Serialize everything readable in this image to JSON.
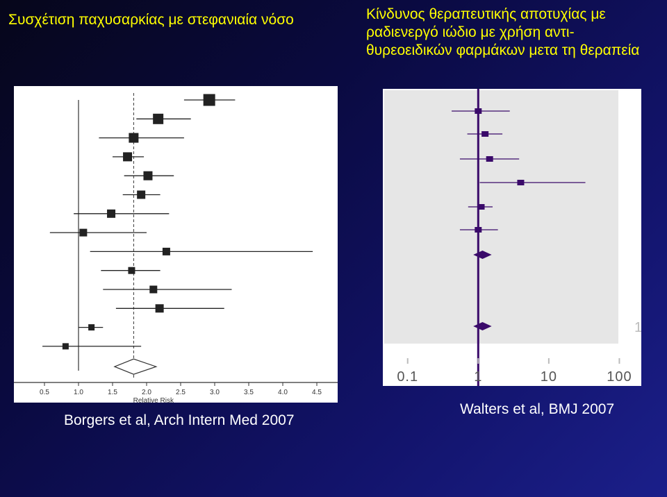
{
  "slide": {
    "title_left": "Συσχέτιση παχυσαρκίας με στεφανιαία νόσο",
    "title_right": "Κίνδυνος θεραπευτικής αποτυχίας με ραδιενεργό ιώδιο με χρήση αντι-θυρεοειδικών φαρμάκων μετα τη θεραπεία",
    "caption_left": "Borgers et al, Arch Intern Med 2007",
    "caption_right": "Walters et al, BMJ 2007"
  },
  "colors": {
    "title": "#ffff00",
    "caption": "#ffffff",
    "left_marker": "#222222",
    "right_marker": "#3a0a6a",
    "right_plot_bg": "#e6e6e6"
  },
  "chart_data": [
    {
      "type": "scatter",
      "subtype": "forest-plot",
      "title": "",
      "xlabel": "Relative Risk",
      "ylabel": "",
      "xlim": [
        0.5,
        4.5
      ],
      "x_ticks": [
        "0.5",
        "1.0",
        "1.5",
        "2.0",
        "2.5",
        "3.0",
        "3.5",
        "4.0",
        "4.5"
      ],
      "reference_line": 1.0,
      "pooled_line": 1.81,
      "studies": [
        {
          "estimate": 2.92,
          "lower": 2.55,
          "upper": 3.3
        },
        {
          "estimate": 2.17,
          "lower": 1.85,
          "upper": 2.65
        },
        {
          "estimate": 1.81,
          "lower": 1.3,
          "upper": 2.55
        },
        {
          "estimate": 1.72,
          "lower": 1.5,
          "upper": 1.96
        },
        {
          "estimate": 2.02,
          "lower": 1.67,
          "upper": 2.4
        },
        {
          "estimate": 1.92,
          "lower": 1.65,
          "upper": 2.2
        },
        {
          "estimate": 1.48,
          "lower": 0.93,
          "upper": 2.33
        },
        {
          "estimate": 1.07,
          "lower": 0.58,
          "upper": 2.0
        },
        {
          "estimate": 2.29,
          "lower": 1.17,
          "upper": 4.44
        },
        {
          "estimate": 1.78,
          "lower": 1.33,
          "upper": 2.2
        },
        {
          "estimate": 2.1,
          "lower": 1.36,
          "upper": 3.25
        },
        {
          "estimate": 2.19,
          "lower": 1.55,
          "upper": 3.14
        },
        {
          "estimate": 1.19,
          "lower": 1.0,
          "upper": 1.36
        },
        {
          "estimate": 0.81,
          "lower": 0.47,
          "upper": 1.92
        }
      ],
      "pooled": {
        "estimate": 1.81,
        "lower": 1.53,
        "upper": 2.14
      }
    },
    {
      "type": "scatter",
      "subtype": "forest-plot",
      "scale": "log",
      "title": "",
      "xlim": [
        0.07,
        130
      ],
      "x_ticks": [
        "0.1",
        "1",
        "10",
        "100"
      ],
      "reference_line": 1,
      "studies": [
        {
          "estimate": 1.0,
          "lower": 0.42,
          "upper": 2.8
        },
        {
          "estimate": 1.25,
          "lower": 0.7,
          "upper": 2.2
        },
        {
          "estimate": 1.45,
          "lower": 0.55,
          "upper": 3.8
        },
        {
          "estimate": 4.0,
          "lower": 1.05,
          "upper": 33.0
        },
        {
          "estimate": 1.1,
          "lower": 0.72,
          "upper": 1.6
        },
        {
          "estimate": 1.0,
          "lower": 0.55,
          "upper": 1.9
        }
      ],
      "pooled": [
        {
          "estimate": 1.15,
          "lower": 0.85,
          "upper": 1.55
        },
        {
          "estimate": 1.15,
          "lower": 0.85,
          "upper": 1.55
        }
      ],
      "right_label": "1"
    }
  ]
}
